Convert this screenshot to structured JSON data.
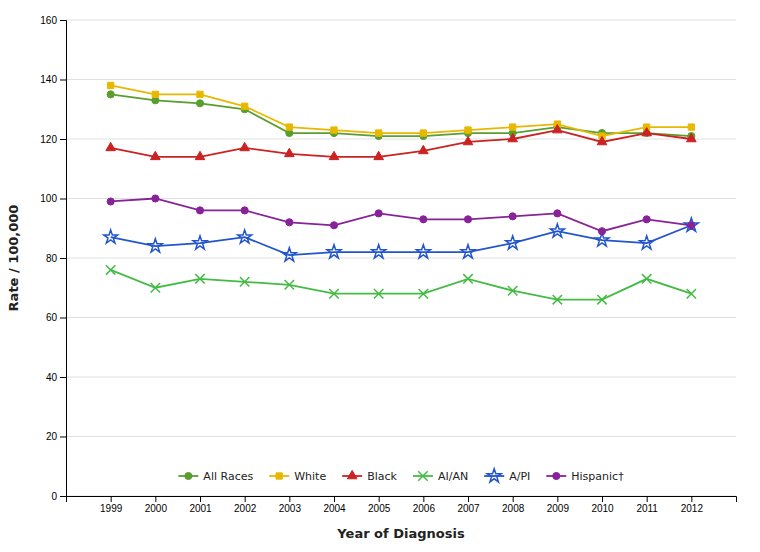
{
  "chart_data": {
    "type": "line",
    "xlabel": "Year of Diagnosis",
    "ylabel": "Rate / 100,000",
    "x": [
      1999,
      2000,
      2001,
      2002,
      2003,
      2004,
      2005,
      2006,
      2007,
      2008,
      2009,
      2010,
      2011,
      2012
    ],
    "xlim": [
      1998,
      2013
    ],
    "xticks": [
      1999,
      2000,
      2001,
      2002,
      2003,
      2004,
      2005,
      2006,
      2007,
      2008,
      2009,
      2010,
      2011,
      2012
    ],
    "ylim": [
      0,
      160
    ],
    "yticks": [
      0,
      20,
      40,
      60,
      80,
      100,
      120,
      140,
      160
    ],
    "grid": true,
    "legend": "bottom",
    "series": [
      {
        "name": "All Races",
        "color": "#5a9e2f",
        "marker": "circle",
        "values": [
          135,
          133,
          132,
          130,
          122,
          122,
          121,
          121,
          122,
          122,
          124,
          122,
          122,
          121
        ]
      },
      {
        "name": "White",
        "color": "#e8b800",
        "marker": "square",
        "values": [
          138,
          135,
          135,
          131,
          124,
          123,
          122,
          122,
          123,
          124,
          125,
          121,
          124,
          124
        ]
      },
      {
        "name": "Black",
        "color": "#cc2222",
        "marker": "triangle",
        "values": [
          117,
          114,
          114,
          117,
          115,
          114,
          114,
          116,
          119,
          120,
          123,
          119,
          122,
          120
        ]
      },
      {
        "name": "AI/AN",
        "color": "#44bb44",
        "marker": "x",
        "values": [
          76,
          70,
          73,
          72,
          71,
          68,
          68,
          68,
          73,
          69,
          66,
          66,
          73,
          68
        ]
      },
      {
        "name": "A/PI",
        "color": "#2255cc",
        "marker": "star",
        "values": [
          87,
          84,
          85,
          87,
          81,
          82,
          82,
          82,
          82,
          85,
          89,
          86,
          85,
          91
        ]
      },
      {
        "name": "Hispanic†",
        "color": "#882299",
        "marker": "circle",
        "values": [
          99,
          100,
          96,
          96,
          92,
          91,
          95,
          93,
          93,
          94,
          95,
          89,
          93,
          91
        ]
      }
    ]
  }
}
